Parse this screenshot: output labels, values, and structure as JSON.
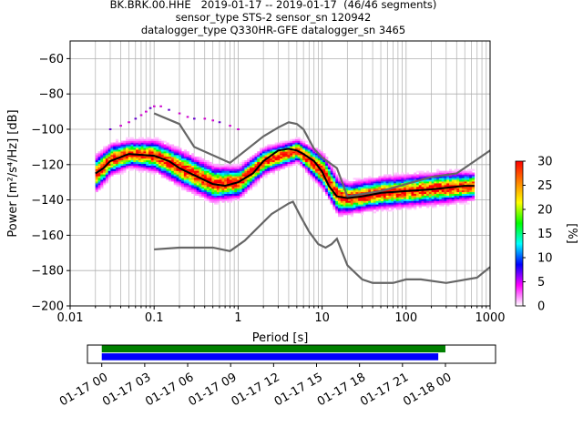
{
  "title_lines": [
    "BK.BRK.00.HHE   2019-01-17 -- 2019-01-17  (46/46 segments)",
    "sensor_type STS-2 sensor_sn 120942",
    "datalogger_type Q330HR-GFE datalogger_sn 3465"
  ],
  "chart_data": [
    {
      "type": "heatmap",
      "title": "BK.BRK.00.HHE   2019-01-17 -- 2019-01-17  (46/46 segments)",
      "xlabel": "Period [s]",
      "ylabel": "Power [m²/s⁴/Hz] [dB]",
      "xscale": "log",
      "xlim": [
        0.01,
        1000
      ],
      "ylim": [
        -200,
        -50
      ],
      "grid": true,
      "xticks": [
        0.01,
        0.1,
        1,
        10,
        100,
        1000
      ],
      "xtick_labels": [
        "0.01",
        "0.1",
        "1",
        "10",
        "100",
        "1000"
      ],
      "yticks": [
        -200,
        -180,
        -160,
        -140,
        -120,
        -100,
        -80,
        -60
      ],
      "ytick_labels": [
        "−200",
        "−180",
        "−160",
        "−140",
        "−120",
        "−100",
        "−80",
        "−60"
      ],
      "colorbar": {
        "label": "[%]",
        "range": [
          0,
          30
        ],
        "ticks": [
          0,
          5,
          10,
          15,
          20,
          25,
          30
        ],
        "tick_labels": [
          "0",
          "5",
          "10",
          "15",
          "20",
          "25",
          "30"
        ],
        "colormap": [
          "#ffffff",
          "#ff00ff",
          "#0000ff",
          "#00ffff",
          "#00ff00",
          "#ffff00",
          "#ff8000",
          "#ff0000"
        ]
      },
      "mode_curve": {
        "x": [
          0.02,
          0.025,
          0.03,
          0.05,
          0.1,
          0.15,
          0.2,
          0.3,
          0.5,
          0.7,
          1,
          1.5,
          2,
          3,
          4,
          5,
          6,
          8,
          10,
          12,
          15,
          20,
          30,
          50,
          100,
          200,
          500,
          650
        ],
        "y": [
          -125,
          -122,
          -118,
          -114,
          -115,
          -118,
          -122,
          -126,
          -131,
          -132,
          -130,
          -125,
          -118,
          -112,
          -111,
          -112,
          -114,
          -118,
          -124,
          -132,
          -138,
          -139,
          -138,
          -136,
          -135,
          -134,
          -132,
          -132
        ]
      },
      "histogram_density": {
        "periods": [
          0.02,
          0.03,
          0.05,
          0.1,
          0.2,
          0.5,
          1,
          2,
          5,
          10,
          15,
          20,
          50,
          100,
          300,
          650
        ],
        "center_db": [
          -125,
          -117,
          -114,
          -115,
          -122,
          -131,
          -130,
          -118,
          -112,
          -124,
          -138,
          -139,
          -136,
          -135,
          -133,
          -132
        ],
        "spread_db": [
          8,
          7,
          6,
          7,
          8,
          8,
          7,
          6,
          5,
          8,
          8,
          7,
          7,
          7,
          7,
          6
        ]
      },
      "outlier_points": {
        "x": [
          0.03,
          0.04,
          0.05,
          0.06,
          0.07,
          0.08,
          0.09,
          0.1,
          0.12,
          0.15,
          0.2,
          0.25,
          0.3,
          0.4,
          0.5,
          0.6,
          0.8,
          1.0
        ],
        "y": [
          -100,
          -98,
          -96,
          -94,
          -92,
          -90,
          -88,
          -87,
          -87,
          -89,
          -91,
          -93,
          -94,
          -94,
          -95,
          -96,
          -98,
          -100
        ]
      },
      "series": [
        {
          "x": [
            0.1,
            0.2,
            0.3,
            0.8,
            2,
            3,
            4,
            5,
            6,
            8,
            10,
            15,
            20,
            50,
            100,
            200,
            400,
            1000
          ],
          "y": [
            -91,
            -97,
            -110,
            -119,
            -104,
            -99,
            -96,
            -97,
            -100,
            -111,
            -116,
            -122,
            -138,
            -135,
            -131,
            -127,
            -125,
            -112
          ]
        },
        {
          "x": [
            0.1,
            0.2,
            0.5,
            0.8,
            1.2,
            2.5,
            4,
            4.5,
            5.5,
            7,
            9,
            11,
            13,
            15,
            20,
            30,
            40,
            70,
            100,
            150,
            300,
            700,
            1000
          ],
          "y": [
            -168,
            -167,
            -167,
            -169,
            -163,
            -148,
            -142,
            -141,
            -149,
            -158,
            -165,
            -167,
            -165,
            -162,
            -177,
            -185,
            -187,
            -187,
            -185,
            -185,
            -187,
            -184,
            -178
          ]
        }
      ]
    },
    {
      "type": "timeline",
      "xlim_hours": [
        -1,
        27.5
      ],
      "xticks_hours": [
        0,
        3,
        6,
        9,
        12,
        15,
        18,
        21,
        24
      ],
      "xtick_labels": [
        "01-17 00",
        "01-17 03",
        "01-17 06",
        "01-17 09",
        "01-17 12",
        "01-17 15",
        "01-17 18",
        "01-17 21",
        "01-18 00"
      ],
      "bars": [
        {
          "color": "#008000",
          "start_hour": 0,
          "end_hour": 24.0
        },
        {
          "color": "#0000ff",
          "start_hour": 0,
          "end_hour": 23.5
        }
      ]
    }
  ]
}
